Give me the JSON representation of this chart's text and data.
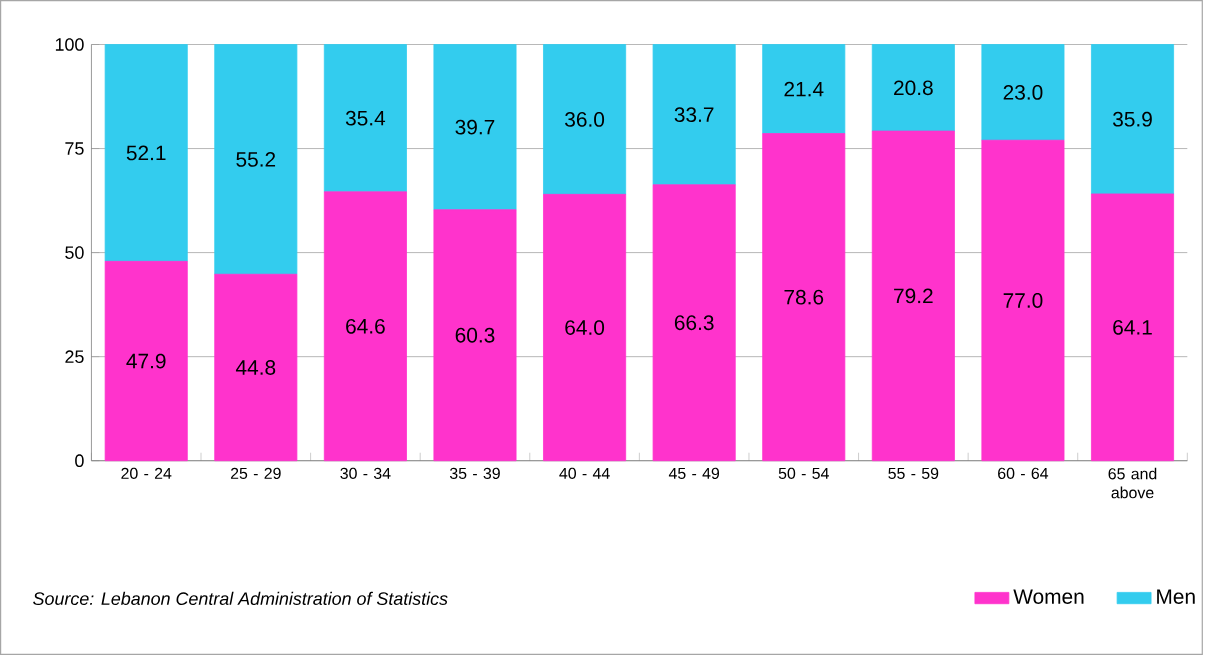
{
  "chart_data": {
    "type": "bar",
    "stacked": true,
    "categories": [
      "20 - 24",
      "25 - 29",
      "30 - 34",
      "35 - 39",
      "40 - 44",
      "45 - 49",
      "50 - 54",
      "55 - 59",
      "60 - 64",
      "65 and above"
    ],
    "series": [
      {
        "name": "Women",
        "color": "#ff33cc",
        "values": [
          47.9,
          44.8,
          64.6,
          60.3,
          64.0,
          66.3,
          78.6,
          79.2,
          77.0,
          64.1
        ],
        "value_labels": [
          "47.9",
          "44.8",
          "64.6",
          "60.3",
          "64.0",
          "66.3",
          "78.6",
          "79.2",
          "77.0",
          "64.1"
        ]
      },
      {
        "name": "Men",
        "color": "#33ccee",
        "values": [
          52.1,
          55.2,
          35.4,
          39.7,
          36.0,
          33.7,
          21.4,
          20.8,
          23.0,
          35.9
        ],
        "value_labels": [
          "52.1",
          "55.2",
          "35.4",
          "39.7",
          "36.0",
          "33.7",
          "21.4",
          "20.8",
          "23.0",
          "35.9"
        ]
      }
    ],
    "ylim": [
      0,
      100
    ],
    "yticks": [
      0,
      25,
      50,
      75,
      100
    ],
    "grid": "y",
    "legend": "bottom right",
    "annotations": [
      "*Source: Lebanon Central Administration of Statistics*"
    ]
  }
}
